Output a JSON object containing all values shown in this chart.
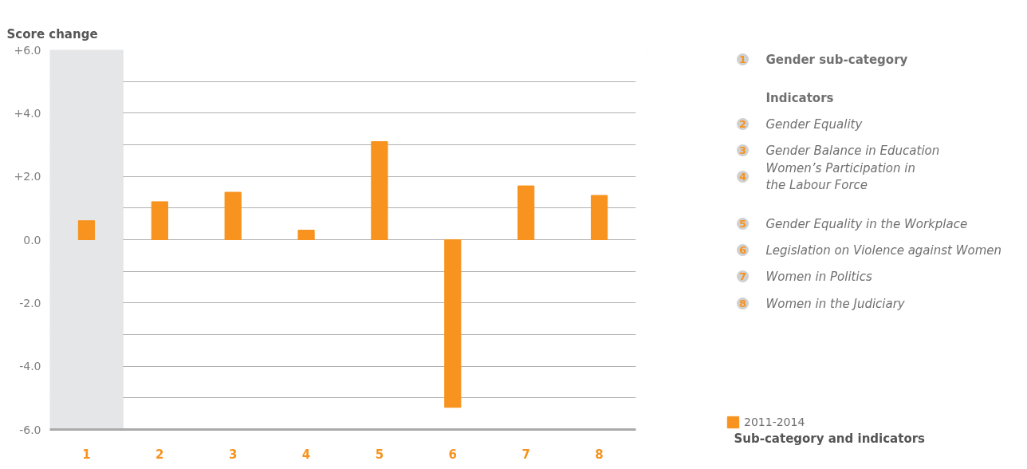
{
  "chart_data": {
    "type": "bar",
    "ylabel": "Score change",
    "categories": [
      "1",
      "2",
      "3",
      "4",
      "5",
      "6",
      "7",
      "8"
    ],
    "series": [
      {
        "name": "2011-2014",
        "color": "#f7931e",
        "values": [
          0.6,
          1.2,
          1.5,
          0.3,
          3.1,
          -5.3,
          1.7,
          1.4
        ]
      }
    ],
    "ylim": [
      -6,
      6
    ],
    "yticks": [
      {
        "value": -6,
        "label": "-6.0"
      },
      {
        "value": -5,
        "label": null
      },
      {
        "value": -4,
        "label": "-4.0"
      },
      {
        "value": -3,
        "label": null
      },
      {
        "value": -2,
        "label": "-2.0"
      },
      {
        "value": -1,
        "label": null
      },
      {
        "value": 0,
        "label": "0.0"
      },
      {
        "value": 1,
        "label": null
      },
      {
        "value": 2,
        "label": "+2.0"
      },
      {
        "value": 3,
        "label": null
      },
      {
        "value": 4,
        "label": "+4.0"
      },
      {
        "value": 5,
        "label": null
      },
      {
        "value": 6,
        "label": "+6.0"
      }
    ],
    "bands": [
      {
        "axis": "x",
        "from": "1",
        "to": "1",
        "color": "#e5e6e8"
      }
    ],
    "grid": "y",
    "legend": "bottom right",
    "annotations": [
      "Gender sub-category",
      "Indicators",
      "Gender Equality",
      "Gender Balance in Education",
      "Women’s Participation in\nthe Labour Force",
      "Gender Equality in the Workplace",
      "Legislation on Violence against Women",
      "Women in Politics",
      "Women in the Judiciary",
      "Sub-category and indicators"
    ]
  }
}
